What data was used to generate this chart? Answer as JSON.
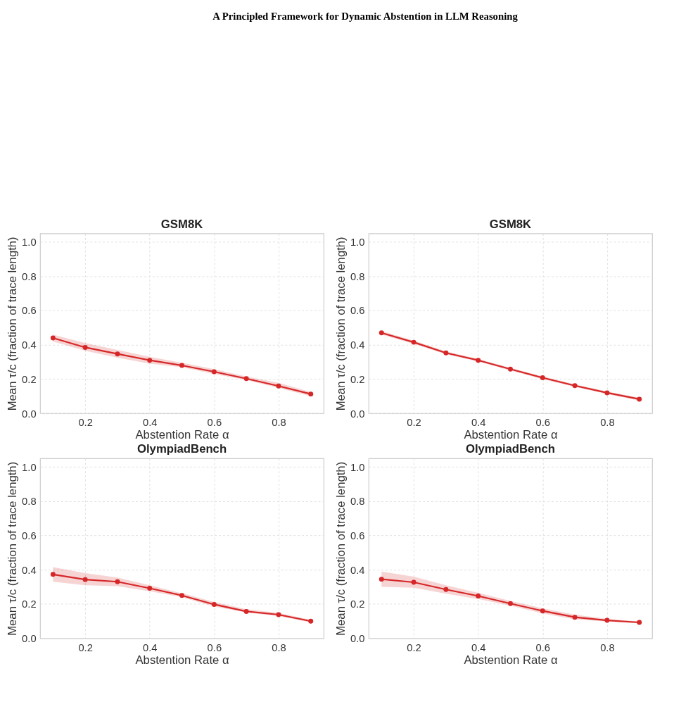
{
  "chart_data": [
    {
      "type": "other",
      "title": "A Principled Framework for Dynamic Abstention in LLM Reasoning"
    },
    {
      "type": "line",
      "title": "GSM8K",
      "xlabel": "Abstention Rate α",
      "ylabel": "Mean τ/c (fraction of trace length)",
      "x": [
        0.1,
        0.2,
        0.3,
        0.4,
        0.5,
        0.6,
        0.7,
        0.8,
        0.9
      ],
      "xlim": [
        0.06,
        0.94
      ],
      "xticks": [
        0.2,
        0.4,
        0.6,
        0.8
      ],
      "ylim": [
        0,
        1.05
      ],
      "yticks": [
        {
          "value": 0,
          "label": "0.0"
        },
        {
          "value": 0.2,
          "label": "0.2"
        },
        {
          "value": 0.4,
          "label": "0.4"
        },
        {
          "value": 0.6,
          "label": "0.6"
        },
        {
          "value": 0.8,
          "label": "0.8"
        },
        {
          "value": 1,
          "label": "1.0"
        }
      ],
      "grid": true,
      "marker": "circle",
      "line_style": "solid",
      "series": [
        {
          "color": "#d62728",
          "values": [
            0.44,
            0.385,
            0.347,
            0.31,
            0.28,
            0.243,
            0.203,
            0.16,
            0.113
          ],
          "lower": [
            0.42,
            0.365,
            0.325,
            0.29,
            0.27,
            0.23,
            0.195,
            0.148,
            0.1
          ],
          "upper": [
            0.46,
            0.41,
            0.37,
            0.33,
            0.295,
            0.258,
            0.215,
            0.178,
            0.125
          ]
        }
      ]
    },
    {
      "type": "line",
      "title": "GSM8K",
      "xlabel": "Abstention Rate α",
      "ylabel": "Mean τ/c (fraction of trace length)",
      "x": [
        0.1,
        0.2,
        0.3,
        0.4,
        0.5,
        0.6,
        0.7,
        0.8,
        0.9
      ],
      "xlim": [
        0.06,
        0.94
      ],
      "xticks": [
        0.2,
        0.4,
        0.6,
        0.8
      ],
      "ylim": [
        0,
        1.05
      ],
      "yticks": [
        {
          "value": 0,
          "label": "0.0"
        },
        {
          "value": 0.2,
          "label": "0.2"
        },
        {
          "value": 0.4,
          "label": "0.4"
        },
        {
          "value": 0.6,
          "label": "0.6"
        },
        {
          "value": 0.8,
          "label": "0.8"
        },
        {
          "value": 1,
          "label": "1.0"
        }
      ],
      "grid": true,
      "marker": "circle",
      "line_style": "solid",
      "series": [
        {
          "color": "#d62728",
          "values": [
            0.47,
            0.415,
            0.353,
            0.31,
            0.258,
            0.208,
            0.162,
            0.12,
            0.083
          ],
          "lower": [
            0.46,
            0.405,
            0.345,
            0.302,
            0.25,
            0.2,
            0.155,
            0.113,
            0.075
          ],
          "upper": [
            0.48,
            0.425,
            0.362,
            0.318,
            0.266,
            0.216,
            0.17,
            0.128,
            0.092
          ]
        }
      ]
    },
    {
      "type": "line",
      "title": "OlympiadBench",
      "xlabel": "Abstention Rate α",
      "ylabel": "Mean τ/c (fraction of trace length)",
      "x": [
        0.1,
        0.2,
        0.3,
        0.4,
        0.5,
        0.6,
        0.7,
        0.8,
        0.9
      ],
      "xlim": [
        0.06,
        0.94
      ],
      "xticks": [
        0.2,
        0.4,
        0.6,
        0.8
      ],
      "ylim": [
        0,
        1.05
      ],
      "yticks": [
        {
          "value": 0,
          "label": "0.0"
        },
        {
          "value": 0.2,
          "label": "0.2"
        },
        {
          "value": 0.4,
          "label": "0.4"
        },
        {
          "value": 0.6,
          "label": "0.6"
        },
        {
          "value": 0.8,
          "label": "0.8"
        },
        {
          "value": 1,
          "label": "1.0"
        }
      ],
      "grid": true,
      "marker": "circle",
      "line_style": "solid",
      "series": [
        {
          "color": "#d62728",
          "values": [
            0.373,
            0.343,
            0.33,
            0.292,
            0.25,
            0.198,
            0.157,
            0.138,
            0.1
          ],
          "lower": [
            0.33,
            0.31,
            0.305,
            0.275,
            0.24,
            0.185,
            0.15,
            0.13,
            0.093
          ],
          "upper": [
            0.415,
            0.38,
            0.355,
            0.31,
            0.263,
            0.212,
            0.17,
            0.148,
            0.108
          ]
        }
      ]
    },
    {
      "type": "line",
      "title": "OlympiadBench",
      "xlabel": "Abstention Rate α",
      "ylabel": "Mean τ/c (fraction of trace length)",
      "x": [
        0.1,
        0.2,
        0.3,
        0.4,
        0.5,
        0.6,
        0.7,
        0.8,
        0.9
      ],
      "xlim": [
        0.06,
        0.94
      ],
      "xticks": [
        0.2,
        0.4,
        0.6,
        0.8
      ],
      "ylim": [
        0,
        1.05
      ],
      "yticks": [
        {
          "value": 0,
          "label": "0.0"
        },
        {
          "value": 0.2,
          "label": "0.2"
        },
        {
          "value": 0.4,
          "label": "0.4"
        },
        {
          "value": 0.6,
          "label": "0.6"
        },
        {
          "value": 0.8,
          "label": "0.8"
        },
        {
          "value": 1,
          "label": "1.0"
        }
      ],
      "grid": true,
      "marker": "circle",
      "line_style": "solid",
      "series": [
        {
          "color": "#d62728",
          "values": [
            0.345,
            0.327,
            0.285,
            0.247,
            0.203,
            0.16,
            0.123,
            0.105,
            0.093
          ],
          "lower": [
            0.3,
            0.295,
            0.26,
            0.23,
            0.19,
            0.145,
            0.11,
            0.098,
            0.088
          ],
          "upper": [
            0.39,
            0.36,
            0.31,
            0.265,
            0.218,
            0.175,
            0.138,
            0.113,
            0.098
          ]
        }
      ]
    }
  ]
}
